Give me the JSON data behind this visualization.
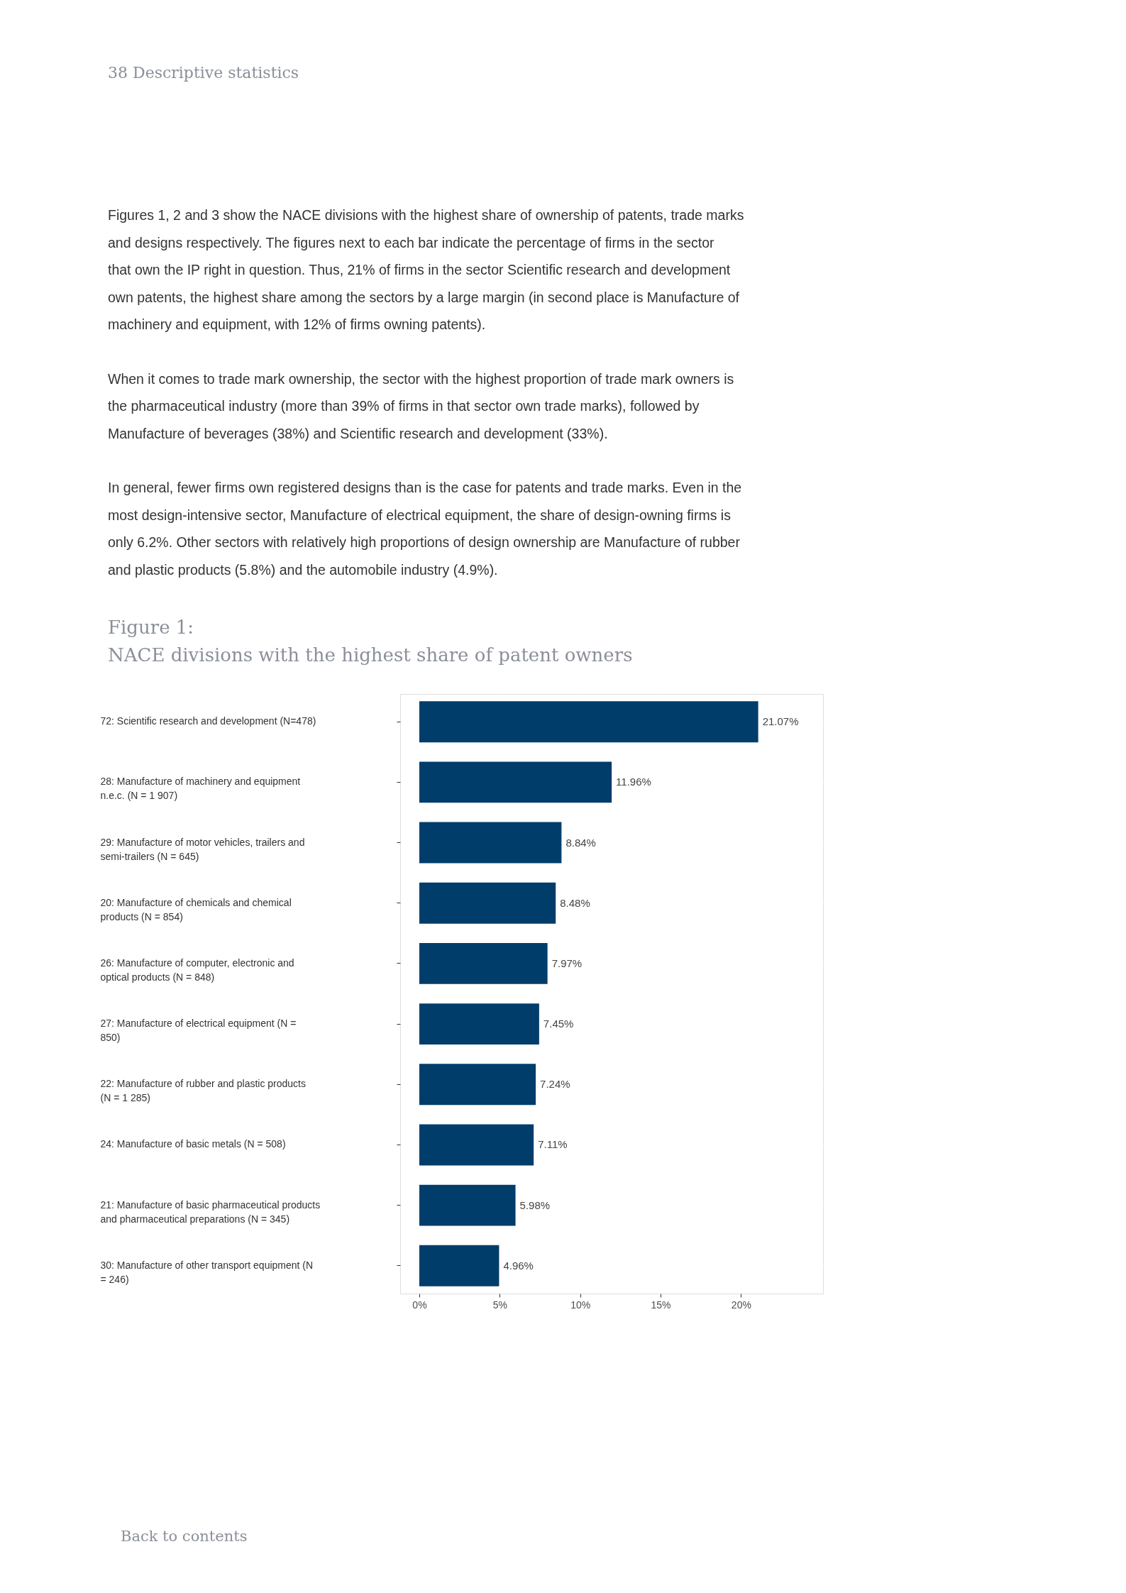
{
  "chart_data": {
    "type": "bar",
    "orientation": "horizontal",
    "title": "Figure 1:",
    "subtitle": "NACE divisions with the highest share of patent owners",
    "categories": [
      "72: Scientific research and development (N=478)",
      "28: Manufacture of machinery and equipment n.e.c. (N = 1 907)",
      "29: Manufacture of motor vehicles, trailers and semi-trailers (N = 645)",
      "20: Manufacture of chemicals and chemical products (N = 854)",
      "26: Manufacture of computer, electronic and optical products (N = 848)",
      "27: Manufacture of electrical equipment (N = 850)",
      "22: Manufacture of rubber and plastic products (N = 1 285)",
      "24: Manufacture of basic metals (N = 508)",
      "21: Manufacture of basic pharmaceutical products and pharmaceutical preparations (N = 345)",
      "30: Manufacture of other transport equipment (N = 246)"
    ],
    "values": [
      21.07,
      11.96,
      8.84,
      8.48,
      7.97,
      7.45,
      7.24,
      7.11,
      5.98,
      4.96
    ],
    "value_labels": [
      "21.07%",
      "11.96%",
      "8.84%",
      "8.48%",
      "7.97%",
      "7.45%",
      "7.24%",
      "7.11%",
      "5.98%",
      "4.96%"
    ],
    "color": "#003d6b",
    "xlim": [
      -1.19,
      25.1
    ],
    "xticks": [
      {
        "value": 0,
        "label": "0%"
      },
      {
        "value": 5,
        "label": "5%"
      },
      {
        "value": 10,
        "label": "10%"
      },
      {
        "value": 15,
        "label": "15%"
      },
      {
        "value": 20,
        "label": "20%"
      }
    ],
    "grid": true,
    "annotations": [
      "38 Descriptive statistics",
      "Figures 1, 2 and 3 show the NACE divisions with the highest share of ownership of patents, trade marks and designs respectively. The figures next to each bar indicate the percentage of firms in the sector that own the IP right in question. Thus, 21% of firms in the sector Scientific research and development own patents, the highest share among the sectors by a large margin (in second place is Manufacture of machinery and equipment, with 12% of firms owning patents).",
      "When it comes to trade mark ownership, the sector with the highest proportion of trade mark owners is the pharmaceutical industry (more than 39% of firms in that sector own trade marks), followed by Manufacture of beverages (38%) and Scientific research and development (33%).",
      "In general, fewer firms own registered designs than is the case for patents and trade marks. Even in the most design-intensive sector, Manufacture of electrical equipment, the share of design-owning firms is only 6.2%. Other sectors with relatively high proportions of design ownership are Manufacture of rubber and plastic products (5.8%) and the automobile industry (4.9%).",
      "Back to contents"
    ]
  }
}
